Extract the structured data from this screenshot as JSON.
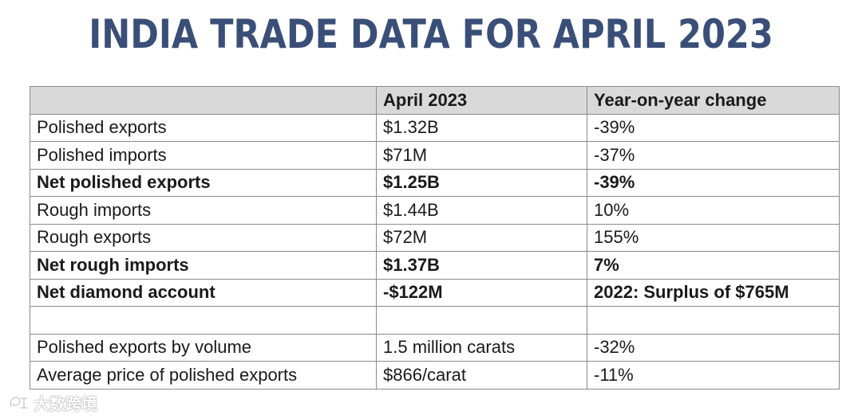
{
  "title": "INDIA TRADE DATA FOR APRIL 2023",
  "table": {
    "headers": [
      "",
      "April 2023",
      "Year-on-year change"
    ],
    "rows": [
      {
        "label": "Polished exports",
        "value": "$1.32B",
        "change": "-39%",
        "bold": false
      },
      {
        "label": "Polished imports",
        "value": "$71M",
        "change": "-37%",
        "bold": false
      },
      {
        "label": "Net polished exports",
        "value": "$1.25B",
        "change": "-39%",
        "bold": true
      },
      {
        "label": "Rough imports",
        "value": "$1.44B",
        "change": "10%",
        "bold": false
      },
      {
        "label": "Rough exports",
        "value": "$72M",
        "change": "155%",
        "bold": false
      },
      {
        "label": "Net rough imports",
        "value": "$1.37B",
        "change": "7%",
        "bold": true
      },
      {
        "label": "Net diamond account",
        "value": "-$122M",
        "change": "2022: Surplus of $765M",
        "bold": true
      },
      {
        "label": "",
        "value": "",
        "change": "",
        "bold": false
      },
      {
        "label": "Polished exports by volume",
        "value": "1.5 million carats",
        "change": "-32%",
        "bold": false
      },
      {
        "label": "Average price of polished exports",
        "value": "$866/carat",
        "change": "-11%",
        "bold": false
      }
    ]
  },
  "watermark": {
    "text": "大数跨境",
    "icon": "watermark-logo-icon"
  },
  "colors": {
    "title": "#3a4f78",
    "header_bg": "#d9d9d9",
    "border": "#8a8a8a"
  }
}
